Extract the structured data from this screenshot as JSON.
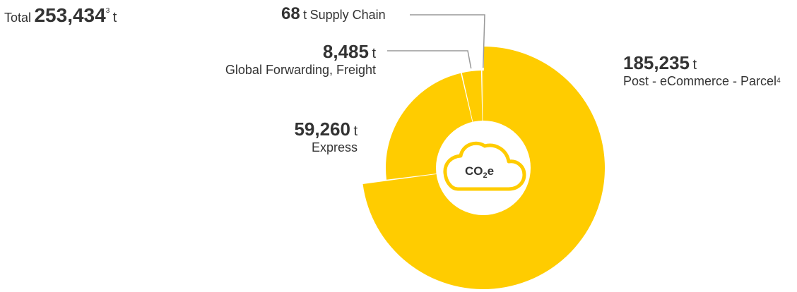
{
  "total": {
    "label": "Total",
    "value": "253,434",
    "footnote": "3",
    "unit": "t"
  },
  "center_icon": {
    "name": "cloud-icon",
    "text": "CO",
    "sub": "2",
    "suffix": "e"
  },
  "colors": {
    "segment": "#FFCC00",
    "center_fill": "#ffffff",
    "leader_line": "#999999",
    "text": "#333333"
  },
  "chart_data": {
    "type": "pie",
    "title": "",
    "unit": "t",
    "total": 253434,
    "series": [
      {
        "name": "Post - eCommerce - Parcel",
        "value": 185235,
        "display": "185,235",
        "footnote": "4"
      },
      {
        "name": "Express",
        "value": 59260,
        "display": "59,260"
      },
      {
        "name": "Global Forwarding, Freight",
        "value": 8485,
        "display": "8,485"
      },
      {
        "name": "Supply Chain",
        "value": 68,
        "display": "68"
      }
    ]
  }
}
